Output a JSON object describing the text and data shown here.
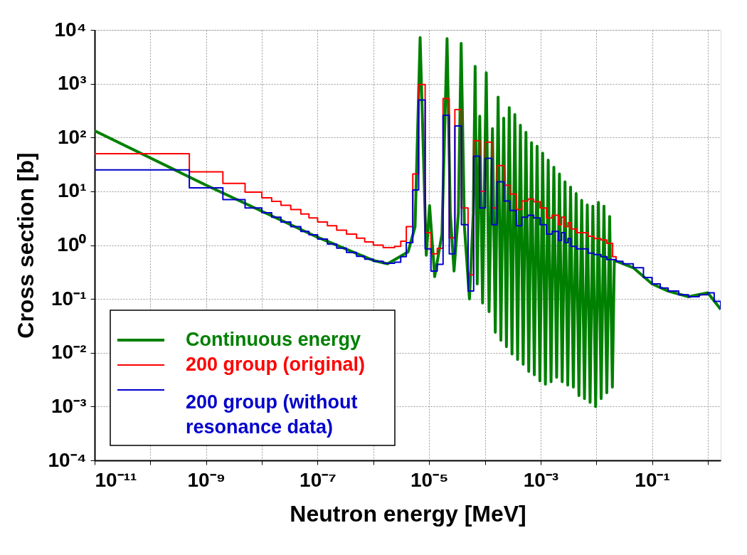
{
  "chart_data": {
    "type": "line",
    "xlabel": "Neutron energy [MeV]",
    "ylabel": "Cross section [b]",
    "log": "xy",
    "grid": true,
    "legend": "bottom left",
    "xlim": [
      1e-11,
      1.7
    ],
    "ylim": [
      0.0001,
      10000
    ],
    "xticks": [
      {
        "value": 1e-11,
        "label": "10⁻¹¹"
      },
      {
        "value": 1e-10,
        "label": null
      },
      {
        "value": 1e-09,
        "label": "10⁻⁹"
      },
      {
        "value": 1e-08,
        "label": null
      },
      {
        "value": 1e-07,
        "label": "10⁻⁷"
      },
      {
        "value": 1e-06,
        "label": null
      },
      {
        "value": 1e-05,
        "label": "10⁻⁵"
      },
      {
        "value": 0.0001,
        "label": null
      },
      {
        "value": 0.001,
        "label": "10⁻³"
      },
      {
        "value": 0.01,
        "label": null
      },
      {
        "value": 0.1,
        "label": "10⁻¹"
      },
      {
        "value": 1,
        "label": null
      }
    ],
    "yticks": [
      {
        "value": 0.0001,
        "label": "10⁻⁴"
      },
      {
        "value": 0.001,
        "label": "10⁻³"
      },
      {
        "value": 0.01,
        "label": "10⁻²"
      },
      {
        "value": 0.1,
        "label": "10⁻¹"
      },
      {
        "value": 1,
        "label": "10⁰"
      },
      {
        "value": 10,
        "label": "10¹"
      },
      {
        "value": 100,
        "label": "10²"
      },
      {
        "value": 1000,
        "label": "10³"
      },
      {
        "value": 10000,
        "label": "10⁴"
      }
    ],
    "series": [
      {
        "name": "Continuous energy",
        "type": "line",
        "color": "#008000",
        "x": [
          1e-11,
          1e-09,
          1e-07,
          1e-06,
          1.8e-06,
          4.2e-06,
          5.6e-06,
          6.9e-06,
          8.9e-06,
          1.02e-05,
          1.26e-05,
          1.7e-05,
          2.1e-05,
          2.4e-05,
          2.8e-05,
          3.35e-05,
          3.76e-05,
          4.3e-05,
          5.3e-05,
          6.2e-05,
          6.7e-05,
          7.3e-05,
          8.1e-05,
          9.1e-05,
          0.000106,
          0.000119,
          0.000137,
          0.000154,
          0.000173,
          0.000194,
          0.000218,
          0.000244,
          0.000274,
          0.000307,
          0.000345,
          0.000387,
          0.000434,
          0.000487,
          0.000546,
          0.000613,
          0.000688,
          0.000772,
          0.000866,
          0.000972,
          0.00109,
          0.00122,
          0.00137,
          0.00154,
          0.00173,
          0.00194,
          0.00218,
          0.00244,
          0.00274,
          0.00307,
          0.00345,
          0.00387,
          0.00434,
          0.00487,
          0.00546,
          0.00613,
          0.00688,
          0.00772,
          0.00866,
          0.00972,
          0.0109,
          0.0122,
          0.0137,
          0.0154,
          0.0173,
          0.0194,
          0.021,
          0.046,
          0.1,
          0.194,
          0.45,
          1.0,
          1.7
        ],
        "values": [
          133,
          13,
          1.4,
          0.52,
          0.45,
          0.75,
          2.2,
          7200,
          0.65,
          5.4,
          0.26,
          1.6,
          6900,
          3.9,
          0.33,
          3.9,
          5600,
          2.2,
          0.1,
          3.9,
          2100,
          0.19,
          250,
          0.084,
          1600,
          0.058,
          146,
          0.024,
          565,
          0.017,
          229,
          0.013,
          360,
          0.0095,
          266,
          0.0075,
          169,
          0.0061,
          125,
          0.0045,
          80,
          0.0039,
          69,
          0.003,
          51,
          0.0026,
          38,
          0.0029,
          28,
          0.0035,
          21,
          0.0029,
          15,
          0.0025,
          12,
          0.0023,
          9.1,
          0.0016,
          6.8,
          0.0014,
          5.6,
          0.0012,
          5.3,
          0.001,
          6.2,
          0.0014,
          5.3,
          0.0018,
          3.4,
          0.0023,
          0.52,
          0.38,
          0.19,
          0.14,
          0.11,
          0.13,
          0.064
        ]
      },
      {
        "name": "200 group (original)",
        "type": "step",
        "color": "#ff0000",
        "x": [
          1e-11,
          5e-10,
          2e-09,
          5e-09,
          1e-08,
          1.5e-08,
          2.2e-08,
          3.3e-08,
          5e-08,
          7e-08,
          1e-07,
          1.5e-07,
          2.2e-07,
          3.3e-07,
          5e-07,
          7e-07,
          1e-06,
          1.5e-06,
          2.4e-06,
          3.1e-06,
          3.9e-06,
          5.1e-06,
          6.5e-06,
          8.5e-06,
          1.08e-05,
          1.4e-05,
          1.78e-05,
          2.3e-05,
          2.9e-05,
          3.8e-05,
          5e-05,
          6.3e-05,
          8.1e-05,
          0.000102,
          0.000133,
          0.000166,
          0.00022,
          0.00028,
          0.000365,
          0.00046,
          0.00059,
          0.00075,
          0.00098,
          0.00127,
          0.00161,
          0.0021,
          0.00237,
          0.00274,
          0.0031,
          0.0035,
          0.0044,
          0.0071,
          0.0091,
          0.0121,
          0.0154,
          0.0196,
          0.0226
        ],
        "values": [
          50,
          23,
          14,
          9.7,
          7.6,
          6.5,
          5.5,
          4.6,
          3.8,
          3.2,
          2.7,
          2.3,
          1.9,
          1.6,
          1.35,
          1.15,
          1.0,
          0.9,
          0.95,
          1.18,
          2.2,
          21,
          970,
          1.7,
          0.69,
          0.87,
          530,
          1.37,
          330,
          4.9,
          0.28,
          87,
          10,
          82,
          4.9,
          30,
          13,
          8.9,
          4.6,
          6.6,
          7.2,
          6.4,
          4.9,
          3.2,
          3.6,
          2.4,
          3.3,
          2.2,
          2.6,
          2.0,
          1.7,
          1.46,
          1.33,
          1.25,
          1.08,
          0.61,
          0.5
        ]
      },
      {
        "name": "200 group (without resonance data)",
        "type": "step",
        "color": "#0000cc",
        "x": [
          1e-11,
          5e-10,
          2e-09,
          5e-09,
          1e-08,
          1.5e-08,
          2.2e-08,
          3.3e-08,
          5e-08,
          7e-08,
          1e-07,
          1.5e-07,
          2.2e-07,
          3.3e-07,
          5e-07,
          7e-07,
          1e-06,
          1.5e-06,
          2.4e-06,
          3.1e-06,
          3.9e-06,
          5.1e-06,
          6.5e-06,
          8.5e-06,
          1.08e-05,
          1.4e-05,
          1.78e-05,
          2.3e-05,
          2.9e-05,
          3.8e-05,
          5e-05,
          6.3e-05,
          8.1e-05,
          0.000102,
          0.000133,
          0.000166,
          0.00022,
          0.00028,
          0.000365,
          0.00046,
          0.00059,
          0.00075,
          0.00098,
          0.00127,
          0.00161,
          0.0021,
          0.00237,
          0.00274,
          0.0031,
          0.0035,
          0.0044,
          0.0071,
          0.0091,
          0.0121,
          0.0154,
          0.0226,
          0.03,
          0.046,
          0.07,
          0.1,
          0.14,
          0.194,
          0.3,
          0.45,
          0.7,
          1.0,
          1.3,
          1.7
        ],
        "values": [
          25,
          11.6,
          7.0,
          4.9,
          4.0,
          3.3,
          2.7,
          2.2,
          1.8,
          1.55,
          1.3,
          1.05,
          0.88,
          0.73,
          0.62,
          0.55,
          0.5,
          0.46,
          0.48,
          0.61,
          1.11,
          10.6,
          500,
          0.85,
          0.33,
          0.44,
          258,
          0.69,
          164,
          2.4,
          0.14,
          45,
          4.9,
          41,
          2.4,
          15,
          6.6,
          4.4,
          2.3,
          3.3,
          3.6,
          3.2,
          2.4,
          1.6,
          1.8,
          1.22,
          1.7,
          1.11,
          1.33,
          0.95,
          0.85,
          0.71,
          0.67,
          0.61,
          0.54,
          0.5,
          0.45,
          0.38,
          0.25,
          0.19,
          0.16,
          0.14,
          0.12,
          0.11,
          0.12,
          0.13,
          0.09,
          0.064
        ]
      }
    ]
  }
}
